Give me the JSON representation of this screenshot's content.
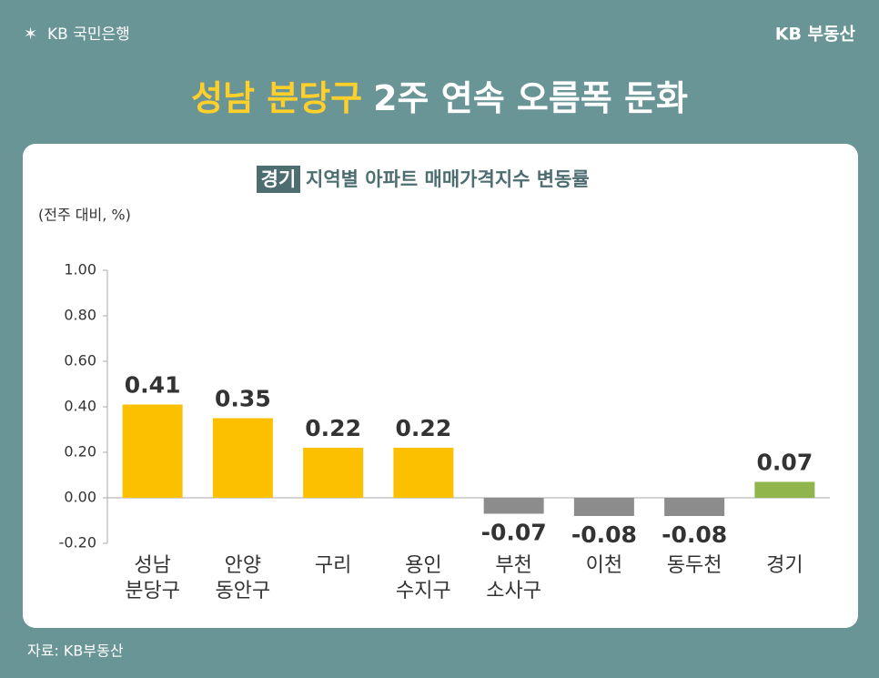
{
  "header": {
    "logo_left": "KB 국민은행",
    "logo_right": "KB 부동산",
    "title_highlight": "성남 분당구",
    "title_rest": "2주 연속 오름폭 둔화",
    "source": "자료: KB부동산"
  },
  "chart_data": {
    "type": "bar",
    "badge": "경기",
    "title": "지역별 아파트 매매가격지수 변동률",
    "unit": "(전주 대비, %)",
    "categories": [
      "성남\n분당구",
      "안양\n동안구",
      "구리",
      "용인\n수지구",
      "부천\n소사구",
      "이천",
      "동두천",
      "경기"
    ],
    "values": [
      0.41,
      0.35,
      0.22,
      0.22,
      -0.07,
      -0.08,
      -0.08,
      0.07
    ],
    "colors": [
      "#fcc000",
      "#fcc000",
      "#fcc000",
      "#fcc000",
      "#8c8c8c",
      "#8c8c8c",
      "#8c8c8c",
      "#8fb54c"
    ],
    "ylim": [
      -0.2,
      1.0
    ],
    "yticks": [
      {
        "value": -0.2,
        "label": "-0.20"
      },
      {
        "value": 0,
        "label": "0.00"
      },
      {
        "value": 0.2,
        "label": "0.20"
      },
      {
        "value": 0.4,
        "label": "0.40"
      },
      {
        "value": 0.6,
        "label": "0.60"
      },
      {
        "value": 0.8,
        "label": "0.80"
      },
      {
        "value": 1.0,
        "label": "1.00"
      }
    ],
    "grid": false
  }
}
